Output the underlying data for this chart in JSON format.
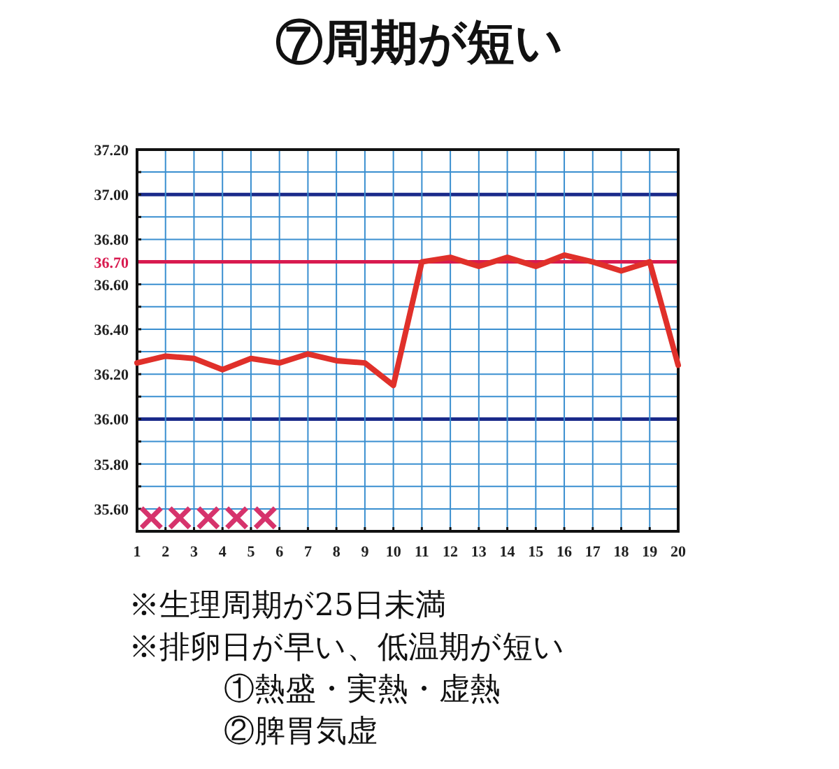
{
  "chart_data": {
    "type": "line",
    "title": "⑦周期が短い",
    "x": [
      1,
      2,
      3,
      4,
      5,
      6,
      7,
      8,
      9,
      10,
      11,
      12,
      13,
      14,
      15,
      16,
      17,
      18,
      19,
      20
    ],
    "series": [
      {
        "color": "#e0302a",
        "values": [
          36.25,
          36.28,
          36.27,
          36.22,
          36.27,
          36.25,
          36.29,
          36.26,
          36.25,
          36.15,
          36.7,
          36.72,
          36.68,
          36.72,
          36.68,
          36.73,
          36.7,
          36.66,
          36.7,
          36.24
        ]
      },
      {
        "type": "scatter",
        "marker": "cross",
        "color": "#d6336c",
        "x": [
          1.5,
          2.5,
          3.5,
          4.5,
          5.5
        ],
        "values": [
          35.56,
          35.56,
          35.56,
          35.56,
          35.56
        ]
      }
    ],
    "marker": "none",
    "line_style": "solid",
    "grid": true,
    "xlim": [
      1,
      20
    ],
    "xticks": [
      1,
      2,
      3,
      4,
      5,
      6,
      7,
      8,
      9,
      10,
      11,
      12,
      13,
      14,
      15,
      16,
      17,
      18,
      19,
      20
    ],
    "ylim": [
      35.5,
      37.2
    ],
    "yticks": [
      {
        "value": 35.5,
        "label": null
      },
      {
        "value": 35.6,
        "label": "35.60"
      },
      {
        "value": 35.7,
        "label": null
      },
      {
        "value": 35.8,
        "label": "35.80"
      },
      {
        "value": 35.9,
        "label": null
      },
      {
        "value": 36.0,
        "label": "36.00"
      },
      {
        "value": 36.1,
        "label": null
      },
      {
        "value": 36.2,
        "label": "36.20"
      },
      {
        "value": 36.3,
        "label": null
      },
      {
        "value": 36.4,
        "label": "36.40"
      },
      {
        "value": 36.5,
        "label": null
      },
      {
        "value": 36.6,
        "label": "36.60"
      },
      {
        "value": 36.8,
        "label": "36.80"
      },
      {
        "value": 36.9,
        "label": null
      },
      {
        "value": 37.0,
        "label": "37.00"
      },
      {
        "value": 37.1,
        "label": null
      },
      {
        "value": 37.2,
        "label": "37.20"
      }
    ],
    "ref_lines": [
      {
        "axis": "y",
        "value": 36.7,
        "label": "36.70",
        "color": "#d81b50"
      }
    ],
    "annotations": [
      "※生理周期が25日未満",
      "※排卵日が早い、低温期が短い",
      "①熱盛・実熱・虚熱",
      "②脾胃気虚"
    ]
  }
}
